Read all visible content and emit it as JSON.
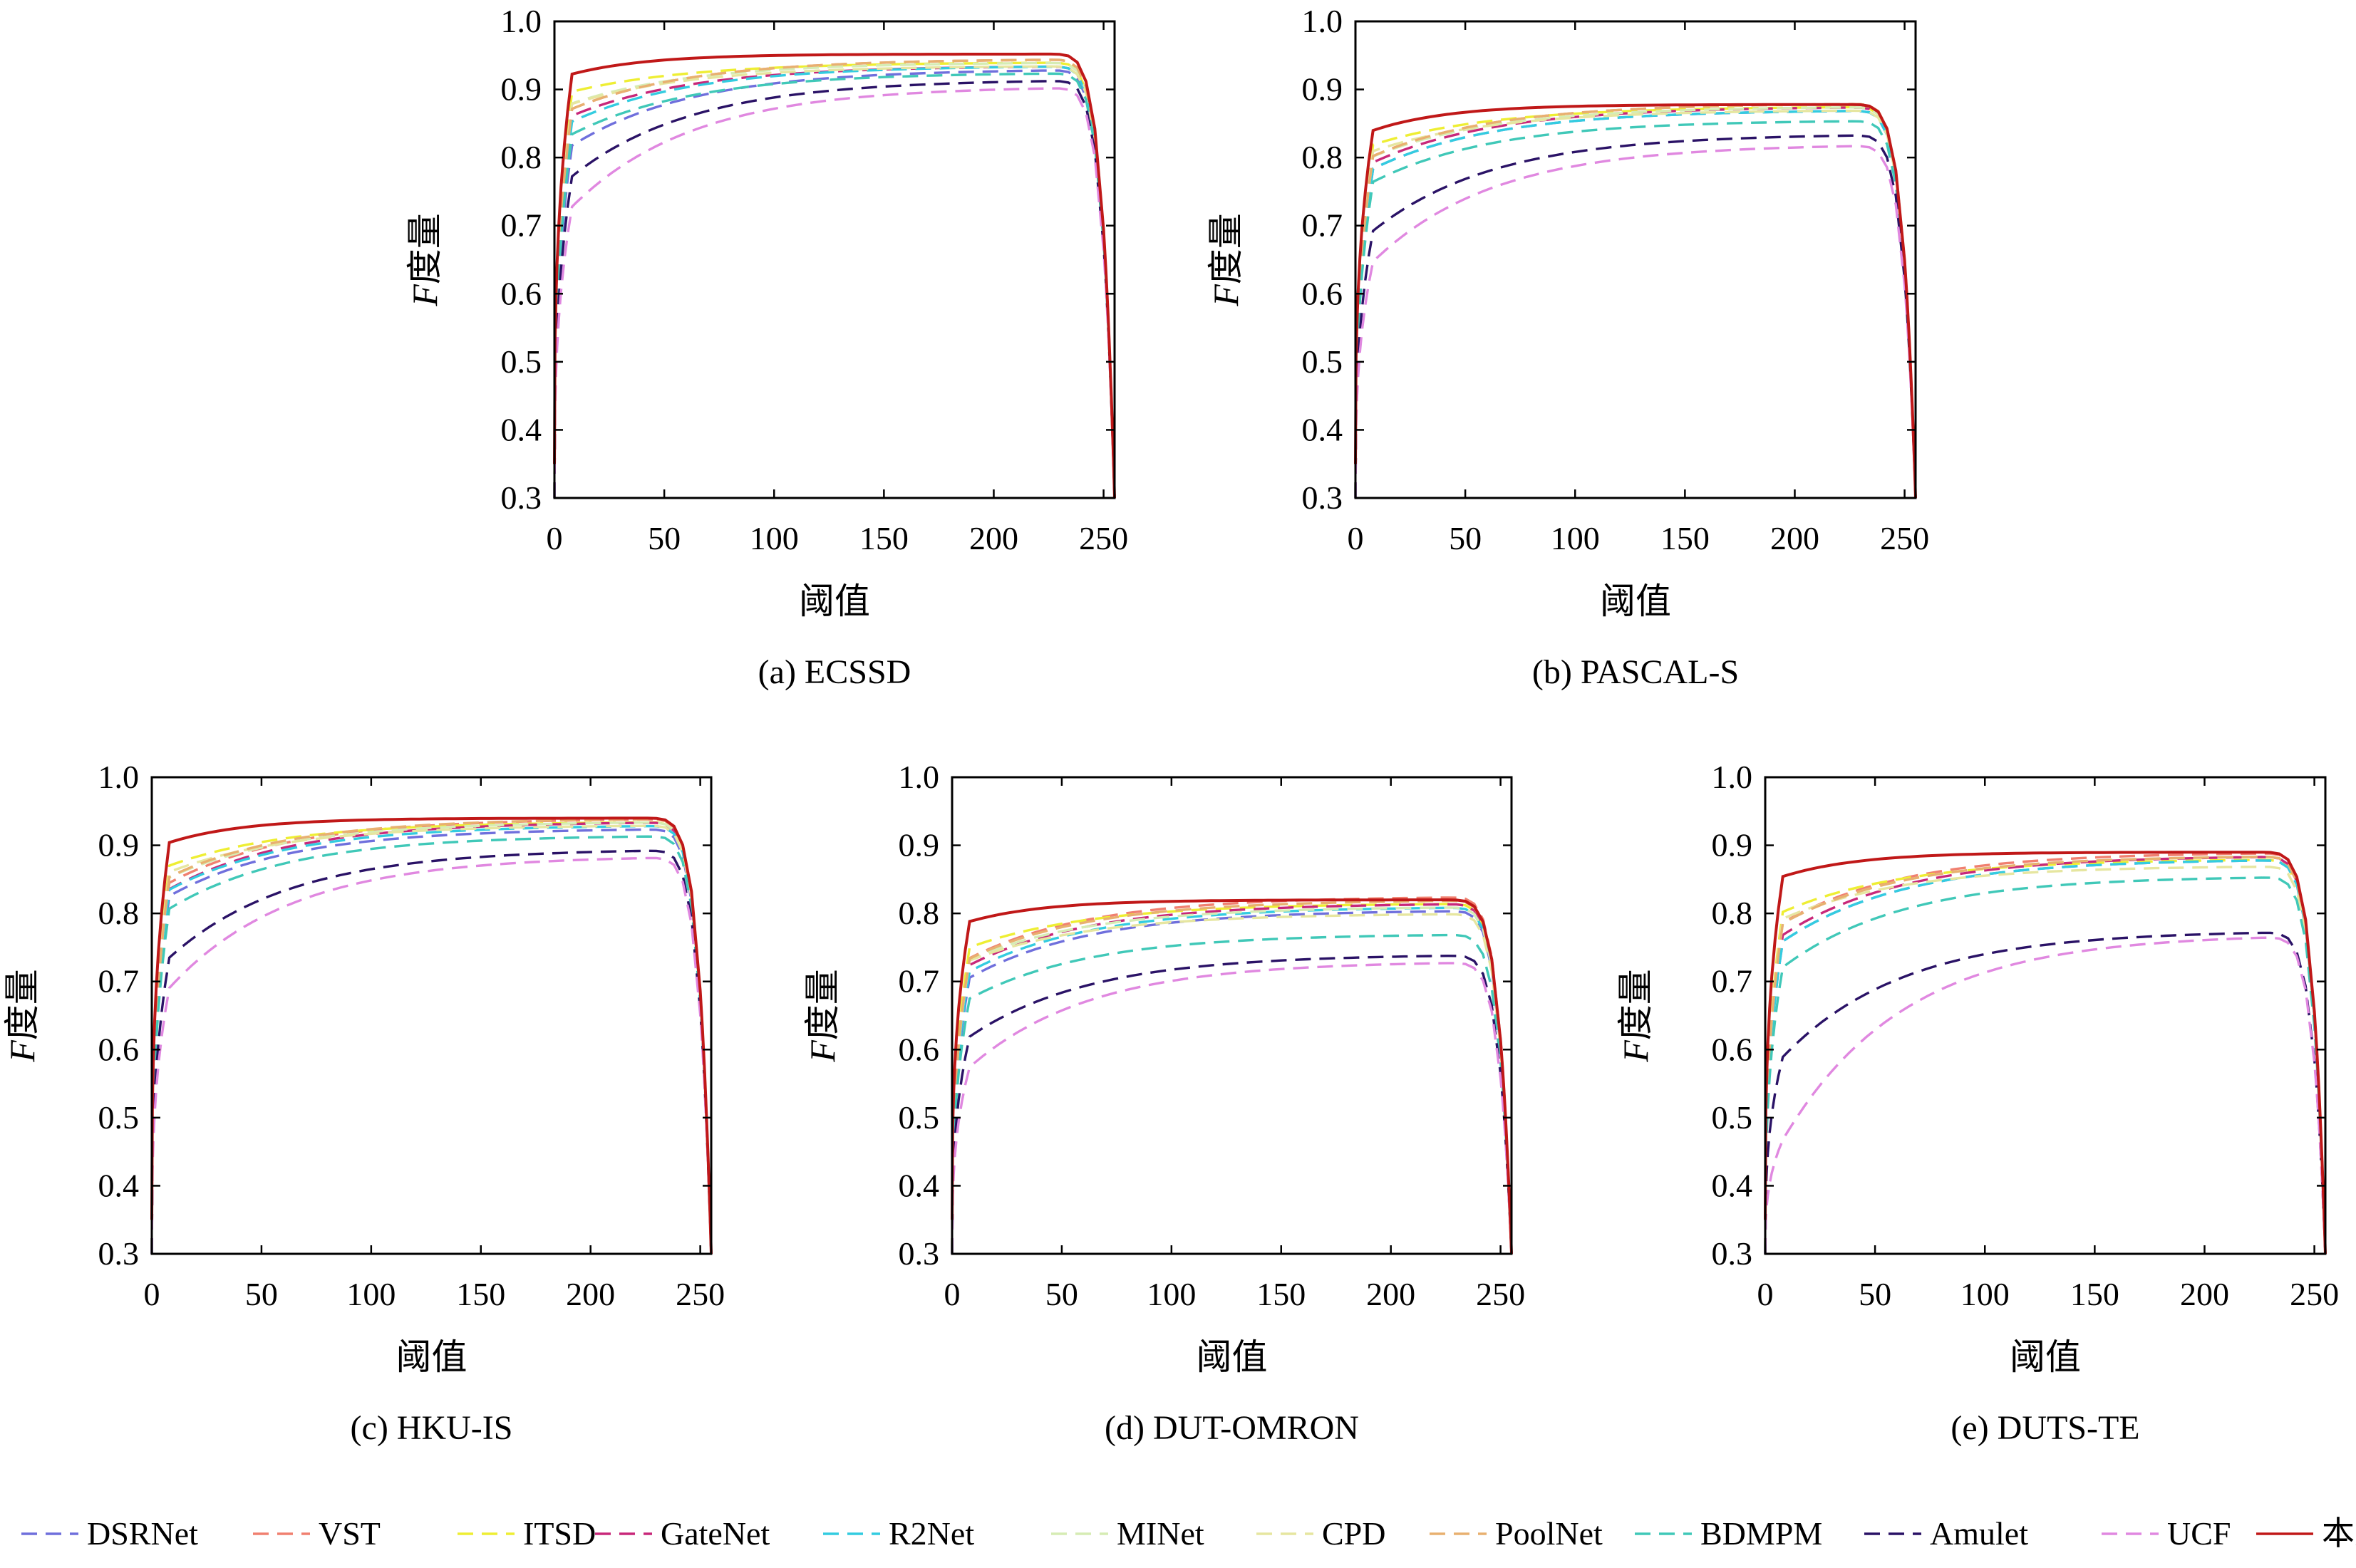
{
  "legend": [
    {
      "name": "DSRNet",
      "color": "#6f6fdc",
      "dash": true
    },
    {
      "name": "VST",
      "color": "#f08070",
      "dash": true
    },
    {
      "name": "ITSD",
      "color": "#eeee33",
      "dash": true
    },
    {
      "name": "GateNet",
      "color": "#c8287a",
      "dash": true
    },
    {
      "name": "R2Net",
      "color": "#33cce0",
      "dash": true
    },
    {
      "name": "MINet",
      "color": "#d6ecb4",
      "dash": true
    },
    {
      "name": "CPD",
      "color": "#e6e6a0",
      "dash": true
    },
    {
      "name": "PoolNet",
      "color": "#e8b070",
      "dash": true
    },
    {
      "name": "BDMPM",
      "color": "#40c8b8",
      "dash": true
    },
    {
      "name": "Amulet",
      "color": "#2a1266",
      "dash": true
    },
    {
      "name": "UCF",
      "color": "#e088e0",
      "dash": true
    },
    {
      "name": "本文",
      "color": "#c01818",
      "dash": false
    }
  ],
  "chart_data": [
    {
      "type": "line",
      "caption": "(a) ECSSD",
      "xlabel": "阈值",
      "ylabel": "F度量",
      "xlim": [
        0,
        255
      ],
      "ylim": [
        0.3,
        1.0
      ],
      "xticks": [
        "0",
        "50",
        "100",
        "150",
        "200",
        "250"
      ],
      "yticks": [
        "0.3",
        "0.4",
        "0.5",
        "0.6",
        "0.7",
        "0.8",
        "0.9",
        "1.0"
      ],
      "series": [
        {
          "name": "DSRNet",
          "plateau": 0.93,
          "start": 0.8
        },
        {
          "name": "VST",
          "plateau": 0.945,
          "start": 0.86
        },
        {
          "name": "ITSD",
          "plateau": 0.94,
          "start": 0.89
        },
        {
          "name": "GateNet",
          "plateau": 0.935,
          "start": 0.85
        },
        {
          "name": "R2Net",
          "plateau": 0.935,
          "start": 0.84
        },
        {
          "name": "MINet",
          "plateau": 0.94,
          "start": 0.87
        },
        {
          "name": "CPD",
          "plateau": 0.935,
          "start": 0.87
        },
        {
          "name": "PoolNet",
          "plateau": 0.945,
          "start": 0.86
        },
        {
          "name": "BDMPM",
          "plateau": 0.925,
          "start": 0.82
        },
        {
          "name": "Amulet",
          "plateau": 0.915,
          "start": 0.75
        },
        {
          "name": "UCF",
          "plateau": 0.905,
          "start": 0.7
        },
        {
          "name": "本文",
          "plateau": 0.952,
          "start": 0.915
        }
      ]
    },
    {
      "type": "line",
      "caption": "(b) PASCAL-S",
      "xlabel": "阈值",
      "ylabel": "F度量",
      "xlim": [
        0,
        255
      ],
      "ylim": [
        0.3,
        1.0
      ],
      "xticks": [
        "0",
        "50",
        "100",
        "150",
        "200",
        "250"
      ],
      "yticks": [
        "0.3",
        "0.4",
        "0.5",
        "0.6",
        "0.7",
        "0.8",
        "0.9",
        "1.0"
      ],
      "series": [
        {
          "name": "DSRNet",
          "plateau": 0.87,
          "start": 0.77
        },
        {
          "name": "VST",
          "plateau": 0.88,
          "start": 0.79
        },
        {
          "name": "ITSD",
          "plateau": 0.875,
          "start": 0.81
        },
        {
          "name": "GateNet",
          "plateau": 0.875,
          "start": 0.78
        },
        {
          "name": "R2Net",
          "plateau": 0.87,
          "start": 0.77
        },
        {
          "name": "MINet",
          "plateau": 0.875,
          "start": 0.79
        },
        {
          "name": "CPD",
          "plateau": 0.87,
          "start": 0.8
        },
        {
          "name": "PoolNet",
          "plateau": 0.88,
          "start": 0.79
        },
        {
          "name": "BDMPM",
          "plateau": 0.855,
          "start": 0.75
        },
        {
          "name": "Amulet",
          "plateau": 0.835,
          "start": 0.67
        },
        {
          "name": "UCF",
          "plateau": 0.82,
          "start": 0.62
        },
        {
          "name": "本文",
          "plateau": 0.878,
          "start": 0.83
        }
      ]
    },
    {
      "type": "line",
      "caption": "(c) HKU-IS",
      "xlabel": "阈值",
      "ylabel": "F度量",
      "xlim": [
        0,
        255
      ],
      "ylim": [
        0.3,
        1.0
      ],
      "xticks": [
        "0",
        "50",
        "100",
        "150",
        "200",
        "250"
      ],
      "yticks": [
        "0.3",
        "0.4",
        "0.5",
        "0.6",
        "0.7",
        "0.8",
        "0.9",
        "1.0"
      ],
      "series": [
        {
          "name": "DSRNet",
          "plateau": 0.925,
          "start": 0.81
        },
        {
          "name": "VST",
          "plateau": 0.94,
          "start": 0.83
        },
        {
          "name": "ITSD",
          "plateau": 0.935,
          "start": 0.86
        },
        {
          "name": "GateNet",
          "plateau": 0.935,
          "start": 0.82
        },
        {
          "name": "R2Net",
          "plateau": 0.93,
          "start": 0.82
        },
        {
          "name": "MINet",
          "plateau": 0.935,
          "start": 0.84
        },
        {
          "name": "CPD",
          "plateau": 0.93,
          "start": 0.85
        },
        {
          "name": "PoolNet",
          "plateau": 0.94,
          "start": 0.84
        },
        {
          "name": "BDMPM",
          "plateau": 0.915,
          "start": 0.79
        },
        {
          "name": "Amulet",
          "plateau": 0.895,
          "start": 0.71
        },
        {
          "name": "UCF",
          "plateau": 0.885,
          "start": 0.66
        },
        {
          "name": "本文",
          "plateau": 0.94,
          "start": 0.895
        }
      ]
    },
    {
      "type": "line",
      "caption": "(d) DUT-OMRON",
      "xlabel": "阈值",
      "ylabel": "F度量",
      "xlim": [
        0,
        255
      ],
      "ylim": [
        0.3,
        1.0
      ],
      "xticks": [
        "0",
        "50",
        "100",
        "150",
        "200",
        "250"
      ],
      "yticks": [
        "0.3",
        "0.4",
        "0.5",
        "0.6",
        "0.7",
        "0.8",
        "0.9",
        "1.0"
      ],
      "series": [
        {
          "name": "DSRNet",
          "plateau": 0.805,
          "start": 0.69
        },
        {
          "name": "VST",
          "plateau": 0.825,
          "start": 0.72
        },
        {
          "name": "ITSD",
          "plateau": 0.815,
          "start": 0.74
        },
        {
          "name": "GateNet",
          "plateau": 0.815,
          "start": 0.71
        },
        {
          "name": "R2Net",
          "plateau": 0.81,
          "start": 0.7
        },
        {
          "name": "MINet",
          "plateau": 0.81,
          "start": 0.72
        },
        {
          "name": "CPD",
          "plateau": 0.8,
          "start": 0.72
        },
        {
          "name": "PoolNet",
          "plateau": 0.82,
          "start": 0.72
        },
        {
          "name": "BDMPM",
          "plateau": 0.77,
          "start": 0.66
        },
        {
          "name": "Amulet",
          "plateau": 0.74,
          "start": 0.6
        },
        {
          "name": "UCF",
          "plateau": 0.73,
          "start": 0.55
        },
        {
          "name": "本文",
          "plateau": 0.82,
          "start": 0.78
        }
      ]
    },
    {
      "type": "line",
      "caption": "(e) DUTS-TE",
      "xlabel": "阈值",
      "ylabel": "F度量",
      "xlim": [
        0,
        255
      ],
      "ylim": [
        0.3,
        1.0
      ],
      "xticks": [
        "0",
        "50",
        "100",
        "150",
        "200",
        "250"
      ],
      "yticks": [
        "0.3",
        "0.4",
        "0.5",
        "0.6",
        "0.7",
        "0.8",
        "0.9",
        "1.0"
      ],
      "series": [
        {
          "name": "DSRNet",
          "plateau": 0.88,
          "start": 0.74
        },
        {
          "name": "VST",
          "plateau": 0.89,
          "start": 0.77
        },
        {
          "name": "ITSD",
          "plateau": 0.88,
          "start": 0.79
        },
        {
          "name": "GateNet",
          "plateau": 0.885,
          "start": 0.75
        },
        {
          "name": "R2Net",
          "plateau": 0.88,
          "start": 0.74
        },
        {
          "name": "MINet",
          "plateau": 0.885,
          "start": 0.77
        },
        {
          "name": "CPD",
          "plateau": 0.87,
          "start": 0.78
        },
        {
          "name": "PoolNet",
          "plateau": 0.885,
          "start": 0.77
        },
        {
          "name": "BDMPM",
          "plateau": 0.855,
          "start": 0.7
        },
        {
          "name": "Amulet",
          "plateau": 0.775,
          "start": 0.56
        },
        {
          "name": "UCF",
          "plateau": 0.77,
          "start": 0.42
        },
        {
          "name": "本文",
          "plateau": 0.89,
          "start": 0.845
        }
      ]
    }
  ]
}
